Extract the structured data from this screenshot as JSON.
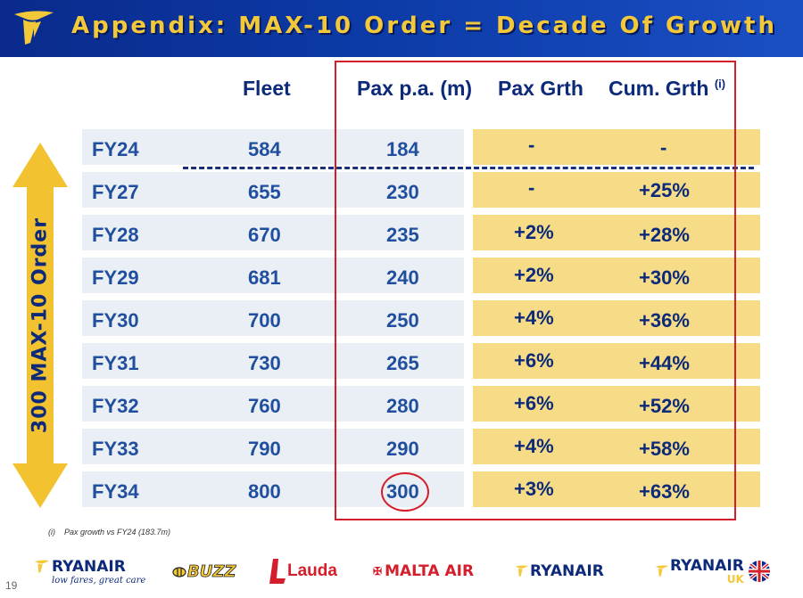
{
  "title": "Appendix: MAX-10 Order = Decade Of Growth",
  "arrow_label": "300 MAX-10 Order",
  "columns": {
    "fleet": "Fleet",
    "pax": "Pax p.a. (m)",
    "pax_growth": "Pax Grth",
    "cum_growth": "Cum. Grth",
    "cum_note": "(i)"
  },
  "rows": [
    {
      "year": "FY24",
      "fleet": "584",
      "pax": "184",
      "pax_growth": "-",
      "cum_growth": "-"
    },
    {
      "year": "FY27",
      "fleet": "655",
      "pax": "230",
      "pax_growth": "-",
      "cum_growth": "+25%"
    },
    {
      "year": "FY28",
      "fleet": "670",
      "pax": "235",
      "pax_growth": "+2%",
      "cum_growth": "+28%"
    },
    {
      "year": "FY29",
      "fleet": "681",
      "pax": "240",
      "pax_growth": "+2%",
      "cum_growth": "+30%"
    },
    {
      "year": "FY30",
      "fleet": "700",
      "pax": "250",
      "pax_growth": "+4%",
      "cum_growth": "+36%"
    },
    {
      "year": "FY31",
      "fleet": "730",
      "pax": "265",
      "pax_growth": "+6%",
      "cum_growth": "+44%"
    },
    {
      "year": "FY32",
      "fleet": "760",
      "pax": "280",
      "pax_growth": "+6%",
      "cum_growth": "+52%"
    },
    {
      "year": "FY33",
      "fleet": "790",
      "pax": "290",
      "pax_growth": "+4%",
      "cum_growth": "+58%"
    },
    {
      "year": "FY34",
      "fleet": "800",
      "pax": "300",
      "pax_growth": "+3%",
      "cum_growth": "+63%"
    }
  ],
  "footnote": {
    "mark": "(i)",
    "text": "Pax growth vs FY24 (183.7m)"
  },
  "page_number": "19",
  "brands": {
    "ryanair_main": "RYANAIR",
    "ryanair_tagline": "low fares, great care",
    "buzz": "BUZZ",
    "lauda": "Lauda",
    "malta_air": "MALTA AIR",
    "ryanair": "RYANAIR",
    "ryanair_uk": "RYANAIR",
    "uk": "UK"
  },
  "colors": {
    "header_blue": "#0c3aa6",
    "title_yellow": "#f3c93a",
    "row_yellow": "#f6dc86",
    "row_grey": "#eaeef5",
    "text_blue": "#1f4f9e",
    "highlight_red": "#d51e2b"
  }
}
